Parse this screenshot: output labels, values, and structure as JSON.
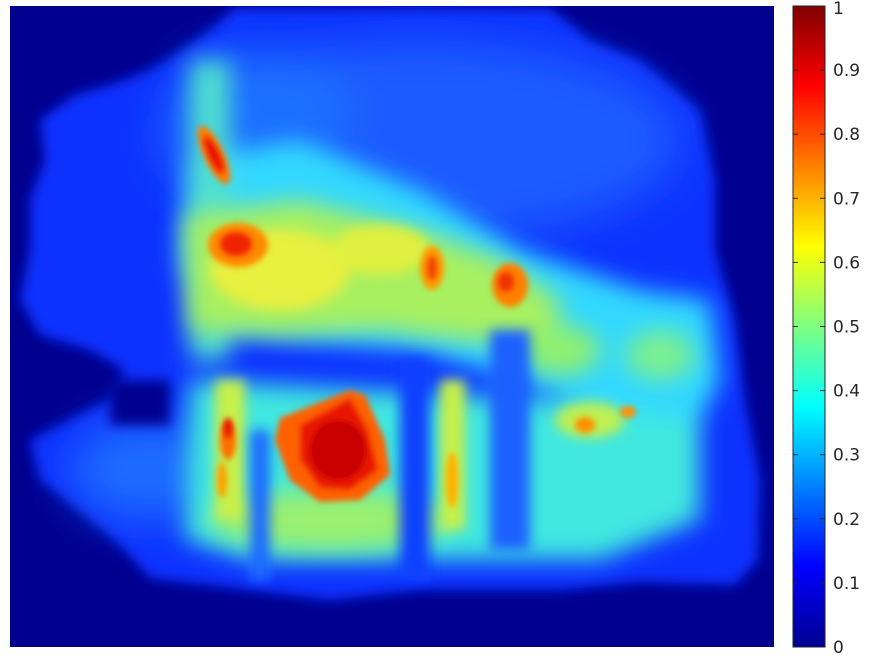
{
  "chart_data": {
    "type": "heatmap",
    "title": "",
    "xlabel": "",
    "ylabel": "",
    "colormap": "jet",
    "clim": [
      0,
      1
    ],
    "colorbar": {
      "location": "right",
      "ticks": [
        0,
        0.1,
        0.2,
        0.3,
        0.4,
        0.5,
        0.6,
        0.7,
        0.8,
        0.9,
        1
      ],
      "tick_labels": [
        "0",
        "0.1",
        "0.2",
        "0.3",
        "0.4",
        "0.5",
        "0.6",
        "0.7",
        "0.8",
        "0.9",
        "1"
      ]
    },
    "axes_visible": false,
    "grid": false,
    "background_value": 0,
    "hotspots": [
      {
        "name": "upper-left streak",
        "value": 0.82
      },
      {
        "name": "left blob",
        "value": 0.78
      },
      {
        "name": "center-right blob",
        "value": 0.75
      },
      {
        "name": "right blob",
        "value": 0.76
      },
      {
        "name": "lower center blob",
        "value": 0.92
      },
      {
        "name": "lower left thin streak",
        "value": 0.85
      },
      {
        "name": "lower middle thin streak",
        "value": 0.68
      },
      {
        "name": "lower right small spot",
        "value": 0.72
      }
    ]
  }
}
